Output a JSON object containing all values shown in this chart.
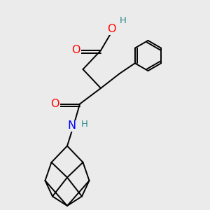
{
  "bg_color": "#ebebeb",
  "atom_colors": {
    "O": "#ff0000",
    "N": "#0000ff",
    "H": "#2e8b8b",
    "C": "#000000"
  },
  "lw": 1.4,
  "fs": 11.5
}
